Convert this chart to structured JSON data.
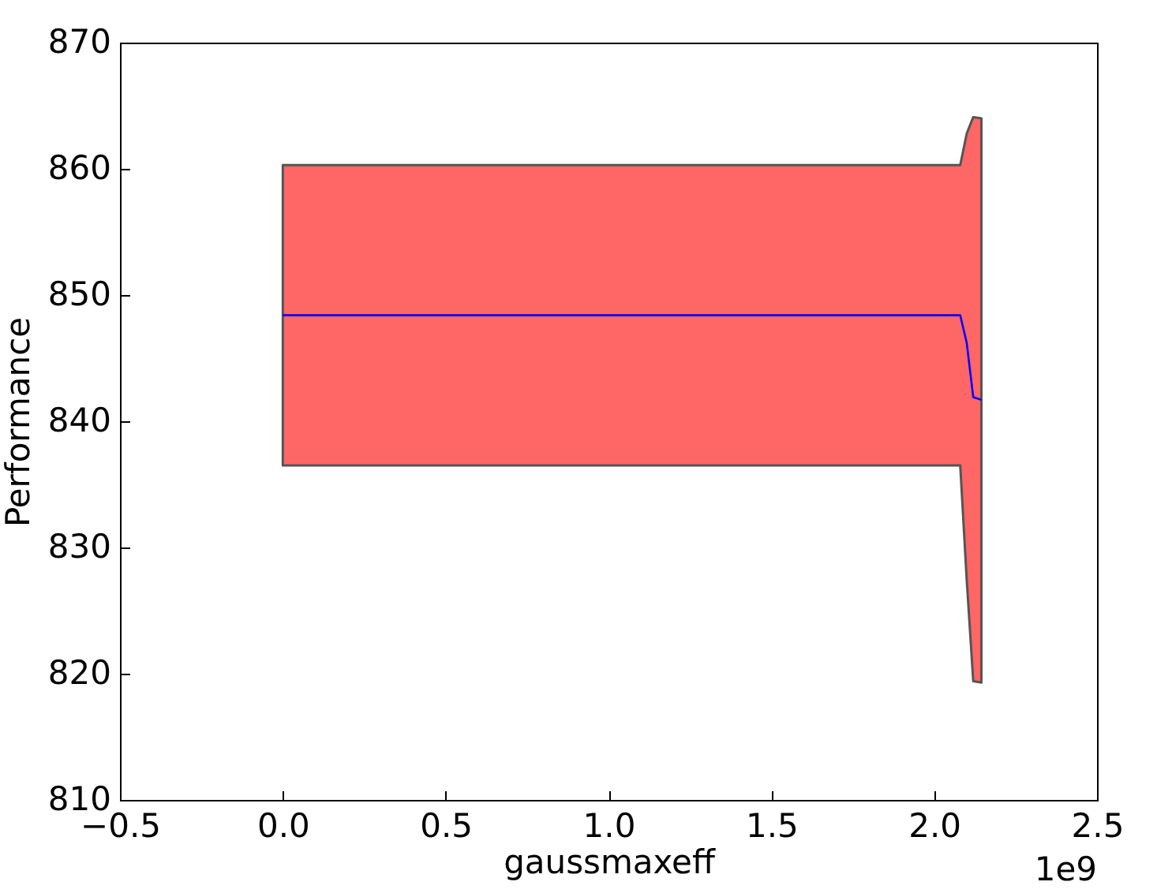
{
  "chart_data": {
    "type": "line",
    "xlabel": "gaussmaxeff",
    "ylabel": "Performance",
    "annotations": [
      "1e9"
    ],
    "x": [
      0,
      0.3,
      2.08,
      2.1,
      2.12,
      2.145
    ],
    "series": [
      {
        "color": "#0000ff",
        "values": [
          848.4,
          848.4,
          848.4,
          846.2,
          841.9,
          841.7
        ],
        "lower": [
          836.5,
          836.5,
          836.5,
          827.4,
          819.4,
          819.3
        ],
        "upper": [
          860.3,
          860.3,
          860.3,
          862.8,
          864.1,
          864.0
        ]
      }
    ],
    "xlim": [
      -0.5,
      2.5
    ],
    "xticks": [
      {
        "value": -0.5,
        "label": "−0.5"
      },
      {
        "value": 0,
        "label": "0.0"
      },
      0.5,
      {
        "value": 1,
        "label": "1.0"
      },
      1.5,
      {
        "value": 2,
        "label": "2.0"
      },
      2.5
    ],
    "ylim": [
      810,
      870
    ],
    "yticks": [
      810,
      820,
      830,
      840,
      850,
      860,
      870
    ],
    "grid": false
  }
}
